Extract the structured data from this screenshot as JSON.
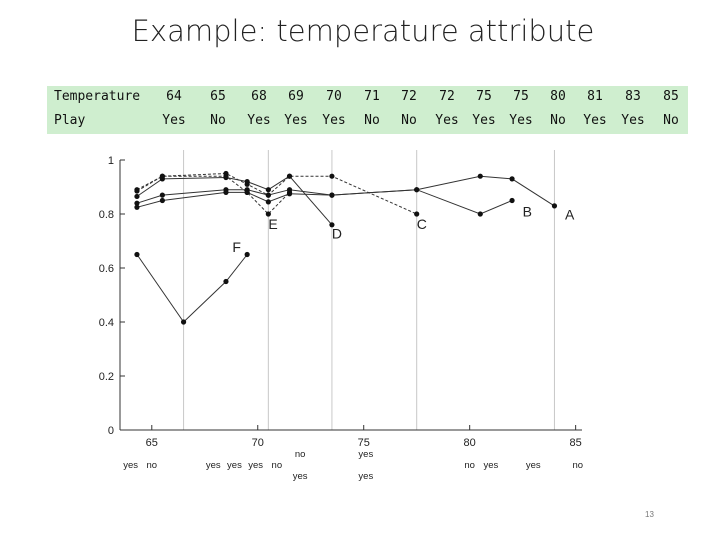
{
  "title": "Example: temperature attribute",
  "table": {
    "row1_label": "Temperature",
    "row2_label": "Play",
    "temperatures": [
      "64",
      "65",
      "68",
      "69",
      "70",
      "71",
      "72",
      "72",
      "75",
      "75",
      "80",
      "81",
      "83",
      "85"
    ],
    "plays": [
      "Yes",
      "No",
      "Yes",
      "Yes",
      "Yes",
      "No",
      "No",
      "Yes",
      "Yes",
      "Yes",
      "No",
      "Yes",
      "Yes",
      "No"
    ]
  },
  "page_number": "13",
  "chart_data": {
    "type": "line",
    "title": "",
    "xlabel": "",
    "ylabel": "",
    "xlim": [
      63.5,
      85.3
    ],
    "ylim": [
      0,
      1
    ],
    "x_ticks": [
      65,
      70,
      75,
      80,
      85
    ],
    "y_ticks": [
      0,
      0.2,
      0.4,
      0.6,
      0.8,
      1
    ],
    "x_tick_labels": [
      "65",
      "70",
      "75",
      "80",
      "85"
    ],
    "y_tick_labels": [
      "0",
      "0.2",
      "0.4",
      "0.6",
      "0.8",
      "1"
    ],
    "grid": false,
    "legend": "none",
    "split_points": [
      66.5,
      70.5,
      73.5,
      77.5,
      84.0
    ],
    "series": [
      {
        "label": "A",
        "label_at": [
          84.5,
          0.78
        ],
        "dashed": false,
        "points": [
          [
            64.3,
            0.84
          ],
          [
            65.5,
            0.87
          ],
          [
            68.5,
            0.89
          ],
          [
            69.5,
            0.89
          ],
          [
            70.5,
            0.87
          ],
          [
            71.5,
            0.89
          ],
          [
            73.5,
            0.87
          ],
          [
            77.5,
            0.89
          ],
          [
            80.5,
            0.94
          ],
          [
            82.0,
            0.93
          ],
          [
            84.0,
            0.83
          ]
        ]
      },
      {
        "label": "B",
        "label_at": [
          82.5,
          0.79
        ],
        "dashed": false,
        "points": [
          [
            64.3,
            0.825
          ],
          [
            65.5,
            0.85
          ],
          [
            68.5,
            0.88
          ],
          [
            69.5,
            0.88
          ],
          [
            70.5,
            0.845
          ],
          [
            71.5,
            0.875
          ],
          [
            73.5,
            0.87
          ],
          [
            77.5,
            0.89
          ],
          [
            80.5,
            0.8
          ],
          [
            82.0,
            0.85
          ]
        ]
      },
      {
        "label": "C",
        "label_at": [
          77.5,
          0.745
        ],
        "dashed": true,
        "points": [
          [
            64.3,
            0.885
          ],
          [
            65.5,
            0.94
          ],
          [
            68.5,
            0.95
          ],
          [
            69.5,
            0.91
          ],
          [
            70.5,
            0.87
          ],
          [
            71.5,
            0.94
          ],
          [
            73.5,
            0.94
          ],
          [
            77.5,
            0.8
          ]
        ]
      },
      {
        "label": "D",
        "label_at": [
          73.5,
          0.71
        ],
        "dashed": false,
        "points": [
          [
            64.3,
            0.865
          ],
          [
            65.5,
            0.93
          ],
          [
            68.5,
            0.935
          ],
          [
            69.5,
            0.92
          ],
          [
            70.5,
            0.89
          ],
          [
            71.5,
            0.94
          ],
          [
            73.5,
            0.76
          ]
        ]
      },
      {
        "label": "E",
        "label_at": [
          70.5,
          0.745
        ],
        "dashed": true,
        "points": [
          [
            64.3,
            0.89
          ],
          [
            65.5,
            0.94
          ],
          [
            68.5,
            0.94
          ],
          [
            69.5,
            0.88
          ],
          [
            70.5,
            0.8
          ],
          [
            71.5,
            0.88
          ]
        ]
      },
      {
        "label": "F",
        "label_at": [
          68.8,
          0.66
        ],
        "dashed": false,
        "points": [
          [
            64.3,
            0.65
          ],
          [
            66.5,
            0.4
          ],
          [
            68.5,
            0.55
          ],
          [
            69.5,
            0.65
          ]
        ]
      }
    ],
    "class_labels": [
      {
        "text": "yes",
        "x": 64.0,
        "row": 0
      },
      {
        "text": "no",
        "x": 65.0,
        "row": 0
      },
      {
        "text": "yes",
        "x": 67.9,
        "row": 0
      },
      {
        "text": "yes",
        "x": 68.9,
        "row": 0
      },
      {
        "text": "yes",
        "x": 69.9,
        "row": 0
      },
      {
        "text": "no",
        "x": 70.9,
        "row": 0
      },
      {
        "text": "no",
        "x": 72.0,
        "row": -1
      },
      {
        "text": "yes",
        "x": 72.0,
        "row": 1
      },
      {
        "text": "yes",
        "x": 75.1,
        "row": -1
      },
      {
        "text": "yes",
        "x": 75.1,
        "row": 1
      },
      {
        "text": "no",
        "x": 80.0,
        "row": 0
      },
      {
        "text": "yes",
        "x": 81.0,
        "row": 0
      },
      {
        "text": "yes",
        "x": 83.0,
        "row": 0
      },
      {
        "text": "no",
        "x": 85.1,
        "row": 0
      }
    ]
  }
}
